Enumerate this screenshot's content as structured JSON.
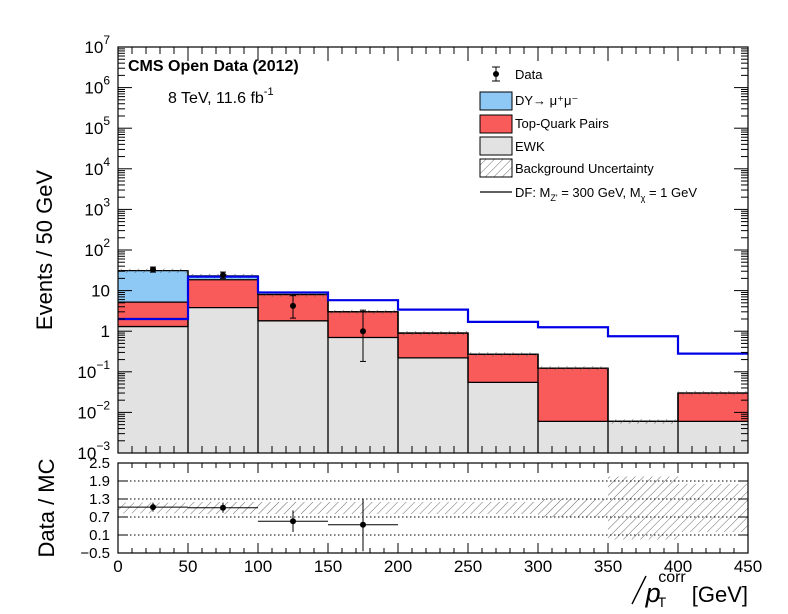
{
  "chart_data": {
    "type": "bar",
    "stacked": true,
    "log_y": true,
    "bin_edges": [
      0,
      50,
      100,
      150,
      200,
      250,
      300,
      350,
      400,
      450
    ],
    "xlim": [
      0,
      450
    ],
    "ylim": [
      0.001,
      10000000
    ],
    "xlabel_main": "p",
    "xlabel_sup": "corr",
    "xlabel_sub": "T",
    "xlabel_unit": "[GeV]",
    "ylabel": "Events / 50 GeV",
    "cms_label": "CMS Open Data (2012)",
    "energy_label_main": "8 TeV, 11.6 fb",
    "energy_label_sup": "-1",
    "x_ticks": [
      0,
      50,
      100,
      150,
      200,
      250,
      300,
      350,
      400,
      450
    ],
    "x_tick_labels": [
      "0",
      "50",
      "100",
      "150",
      "200",
      "250",
      "300",
      "350",
      "400",
      "450"
    ],
    "y_ticks": [
      {
        "value": 10000000,
        "base": "10",
        "exp": "7"
      },
      {
        "value": 1000000,
        "base": "10",
        "exp": "6"
      },
      {
        "value": 100000,
        "base": "10",
        "exp": "5"
      },
      {
        "value": 10000,
        "base": "10",
        "exp": "4"
      },
      {
        "value": 1000,
        "base": "10",
        "exp": "3"
      },
      {
        "value": 100,
        "base": "10",
        "exp": "2"
      },
      {
        "value": 10,
        "base": "10",
        "exp": ""
      },
      {
        "value": 1,
        "base": "1",
        "exp": ""
      },
      {
        "value": 0.1,
        "base": "10",
        "exp": "−1"
      },
      {
        "value": 0.01,
        "base": "10",
        "exp": "−2"
      },
      {
        "value": 0.001,
        "base": "10",
        "exp": "−3"
      }
    ],
    "series": [
      {
        "name": "EWK",
        "color": "#e2e2e2",
        "values": [
          1.3,
          3.8,
          1.8,
          0.7,
          0.22,
          0.055,
          0.006,
          0.006,
          0.006
        ]
      },
      {
        "name": "Top-Quark Pairs",
        "color": "#f95a5a",
        "values": [
          3.9,
          14.7,
          6.2,
          2.3,
          0.68,
          0.215,
          0.117,
          0,
          0.024
        ]
      },
      {
        "name": "DY→μ⁺μ⁻",
        "color": "#8ec8f5",
        "values": [
          25.8,
          4.5,
          0,
          0,
          0,
          0,
          0,
          0,
          0
        ]
      }
    ],
    "signal": {
      "name": "DF: M_Z' = 300 GeV, M_χ = 1 GeV",
      "color": "#0000e6",
      "values": [
        2.0,
        22.0,
        9.0,
        5.8,
        3.4,
        1.7,
        1.25,
        0.75,
        0.28
      ]
    },
    "data": {
      "name": "Data",
      "x": [
        25,
        75,
        125,
        175
      ],
      "y": [
        33,
        24,
        4.2,
        1.0
      ],
      "y_err_low": [
        4.5,
        4.0,
        2.1,
        0.82
      ],
      "y_err_high": [
        5.0,
        4.6,
        3.3,
        2.3
      ]
    },
    "legend": [
      {
        "label": "Data",
        "type": "marker"
      },
      {
        "label": "DY→ μ⁺μ⁻",
        "type": "fill",
        "color": "#8ec8f5"
      },
      {
        "label": "Top-Quark Pairs",
        "type": "fill",
        "color": "#f95a5a"
      },
      {
        "label": "EWK",
        "type": "fill",
        "color": "#e2e2e2"
      },
      {
        "label": "Background Uncertainty",
        "type": "hatch"
      },
      {
        "label_main": "DF: M",
        "label_sub1": "Z'",
        "label_mid": " = 300 GeV, M",
        "label_sub2": "χ",
        "label_end": " = 1 GeV",
        "type": "line"
      }
    ],
    "ratio": {
      "ylabel": "Data / MC",
      "ylim": [
        -0.5,
        2.5
      ],
      "y_ticks": [
        2.5,
        1.9,
        1.3,
        0.7,
        0.1,
        -0.5
      ],
      "y_tick_labels": [
        "2.5",
        "1.9",
        "1.3",
        "0.7",
        "0.1",
        "−0.5"
      ],
      "dotted_lines": [
        1.9,
        1.3,
        0.7,
        0.1
      ],
      "uncertainty_low": [
        0.82,
        0.8,
        0.8,
        0.8,
        0.8,
        0.8,
        0.7,
        -0.05,
        0.2
      ],
      "uncertainty_high": [
        1.18,
        1.2,
        1.2,
        1.2,
        1.2,
        1.2,
        1.3,
        2.05,
        1.8
      ],
      "points_x": [
        25,
        75,
        125,
        175
      ],
      "points_y": [
        1.03,
        1.01,
        0.56,
        0.44
      ],
      "points_err": [
        0.15,
        0.17,
        0.36,
        0.88
      ]
    }
  }
}
